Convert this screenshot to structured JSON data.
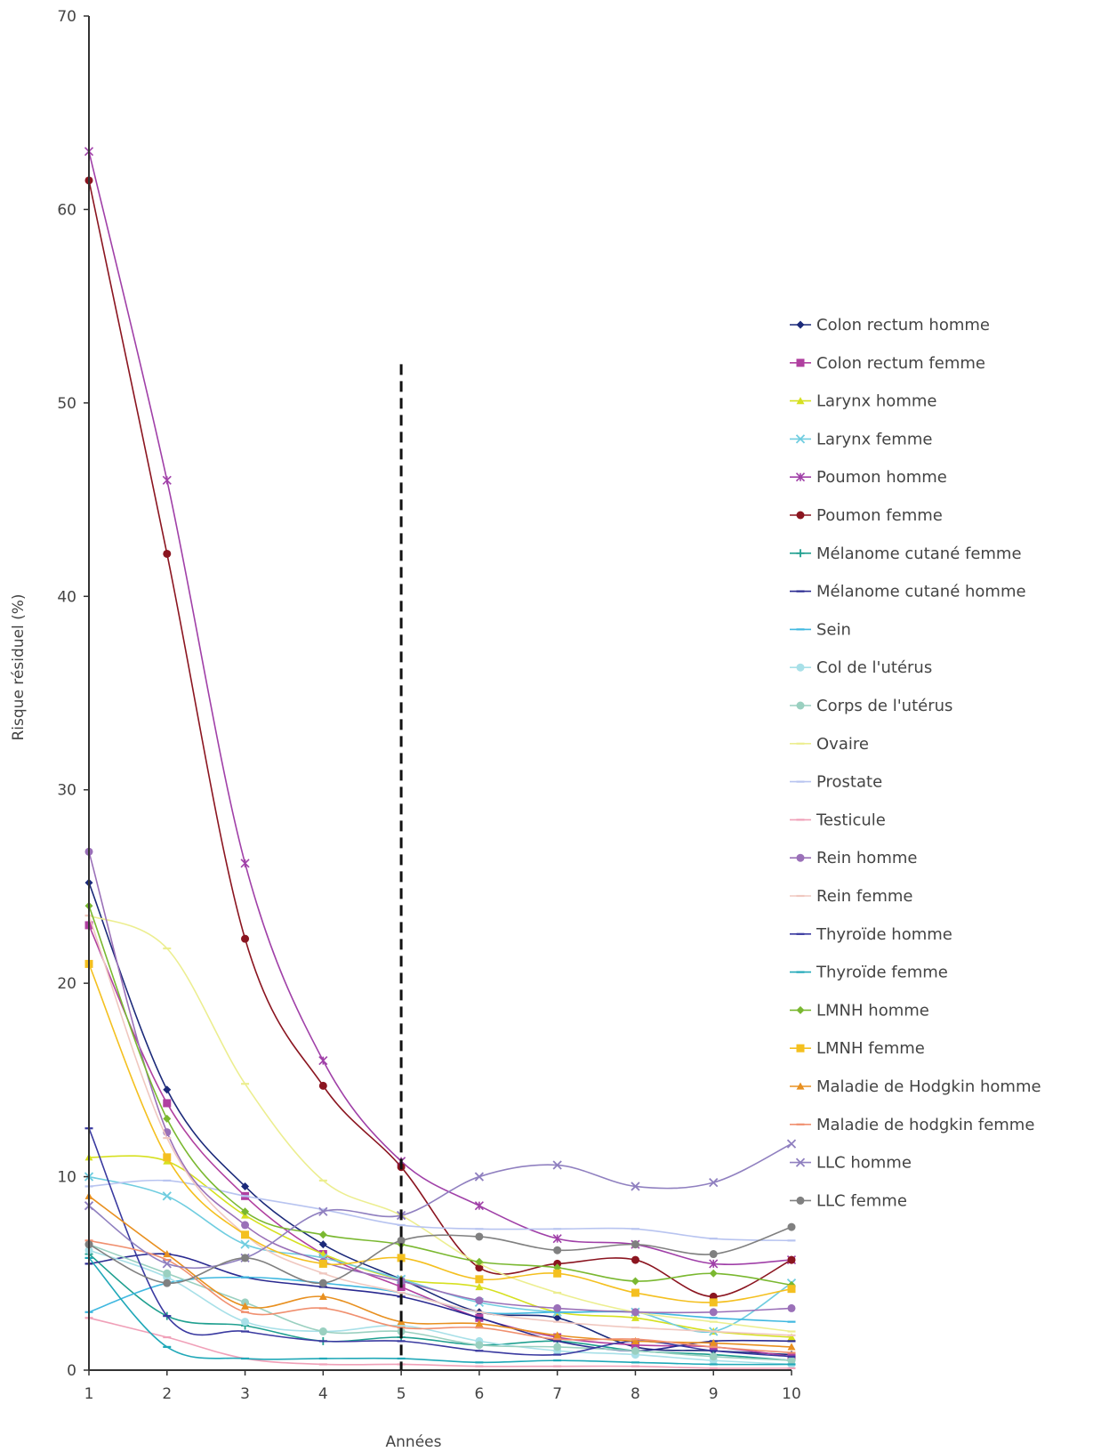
{
  "chart_data": {
    "type": "line",
    "title": "",
    "xlabel": "Années",
    "ylabel": "Risque résiduel (%)",
    "x": [
      1,
      2,
      3,
      4,
      5,
      6,
      7,
      8,
      9,
      10
    ],
    "xlim": [
      1,
      10
    ],
    "ylim": [
      0,
      70
    ],
    "yticks": [
      0,
      10,
      20,
      30,
      40,
      50,
      60,
      70
    ],
    "grid": false,
    "legend_position": "right",
    "annotations": [
      {
        "type": "vertical-dashed-line",
        "x": 5,
        "y_top": 52
      }
    ],
    "series": [
      {
        "name": "Colon rectum homme",
        "color": "#1c2a7a",
        "marker": "diamond",
        "values": [
          25.2,
          14.5,
          9.5,
          6.5,
          4.7,
          3.0,
          2.7,
          1.2,
          1.0,
          0.8
        ]
      },
      {
        "name": "Colon rectum femme",
        "color": "#b040a0",
        "marker": "square",
        "values": [
          23.0,
          13.8,
          9.0,
          6.0,
          4.3,
          2.7,
          1.7,
          1.3,
          1.2,
          0.7
        ]
      },
      {
        "name": "Larynx homme",
        "color": "#d6e020",
        "marker": "triangle",
        "values": [
          11.0,
          10.8,
          8.0,
          6.0,
          4.7,
          4.3,
          3.0,
          2.7,
          2.0,
          1.7
        ]
      },
      {
        "name": "Larynx femme",
        "color": "#70cde0",
        "marker": "x",
        "values": [
          10.0,
          9.0,
          6.5,
          5.8,
          4.7,
          3.5,
          3.0,
          3.0,
          2.0,
          4.5
        ]
      },
      {
        "name": "Poumon homme",
        "color": "#a040a8",
        "marker": "star",
        "values": [
          63.0,
          46.0,
          26.2,
          16.0,
          10.8,
          8.5,
          6.8,
          6.5,
          5.5,
          5.7
        ]
      },
      {
        "name": "Poumon femme",
        "color": "#8b1520",
        "marker": "circle",
        "values": [
          61.5,
          42.2,
          22.3,
          14.7,
          10.5,
          5.3,
          5.5,
          5.7,
          3.8,
          5.7
        ]
      },
      {
        "name": "Mélanome cutané femme",
        "color": "#20a090",
        "marker": "plus",
        "values": [
          6.0,
          2.8,
          2.3,
          1.5,
          1.7,
          1.3,
          1.5,
          1.0,
          0.8,
          0.5
        ]
      },
      {
        "name": "Mélanome cutané homme",
        "color": "#2a2a90",
        "marker": "dash",
        "values": [
          5.5,
          6.0,
          4.8,
          4.3,
          3.8,
          2.7,
          1.5,
          1.0,
          1.5,
          1.5
        ]
      },
      {
        "name": "Sein",
        "color": "#40b8e0",
        "marker": "dash",
        "values": [
          3.0,
          4.5,
          4.8,
          4.5,
          4.0,
          3.0,
          3.0,
          3.0,
          2.7,
          2.5
        ]
      },
      {
        "name": "Col de l'utérus",
        "color": "#a8e0e8",
        "marker": "circle",
        "values": [
          6.2,
          4.8,
          2.5,
          2.0,
          2.3,
          1.5,
          1.0,
          0.8,
          0.5,
          0.3
        ]
      },
      {
        "name": "Corps de l'utérus",
        "color": "#9ad0c0",
        "marker": "circle",
        "values": [
          6.5,
          5.0,
          3.5,
          2.0,
          2.0,
          1.3,
          1.2,
          1.0,
          0.7,
          0.5
        ]
      },
      {
        "name": "Ovaire",
        "color": "#ecee90",
        "marker": "dash",
        "values": [
          23.5,
          21.8,
          14.8,
          9.8,
          8.0,
          5.5,
          4.0,
          3.0,
          2.5,
          2.0
        ]
      },
      {
        "name": "Prostate",
        "color": "#b8c4f0",
        "marker": "dash",
        "values": [
          9.5,
          9.8,
          9.0,
          8.3,
          7.5,
          7.3,
          7.3,
          7.3,
          6.8,
          6.7
        ]
      },
      {
        "name": "Testicule",
        "color": "#f0a0b8",
        "marker": "dash",
        "values": [
          2.7,
          1.7,
          0.6,
          0.3,
          0.3,
          0.2,
          0.2,
          0.2,
          0.1,
          0.1
        ]
      },
      {
        "name": "Rein homme",
        "color": "#9a70b8",
        "marker": "circle",
        "values": [
          26.8,
          12.3,
          7.5,
          5.6,
          4.6,
          3.6,
          3.2,
          3.0,
          3.0,
          3.2
        ]
      },
      {
        "name": "Rein femme",
        "color": "#f0c8c0",
        "marker": "dash",
        "values": [
          23.5,
          12.0,
          7.0,
          5.0,
          4.0,
          3.0,
          2.5,
          2.2,
          2.0,
          1.8
        ]
      },
      {
        "name": "Thyroïde homme",
        "color": "#3a3aa0",
        "marker": "dash",
        "values": [
          12.5,
          2.8,
          2.0,
          1.5,
          1.5,
          1.0,
          0.8,
          1.5,
          1.0,
          0.7
        ]
      },
      {
        "name": "Thyroïde femme",
        "color": "#20a8b8",
        "marker": "dash",
        "values": [
          5.8,
          1.2,
          0.6,
          0.6,
          0.6,
          0.4,
          0.5,
          0.4,
          0.3,
          0.3
        ]
      },
      {
        "name": "LMNH homme",
        "color": "#7ab830",
        "marker": "diamond",
        "values": [
          24.0,
          13.0,
          8.2,
          7.0,
          6.5,
          5.6,
          5.3,
          4.6,
          5.0,
          4.4
        ]
      },
      {
        "name": "LMNH femme",
        "color": "#f4c020",
        "marker": "square",
        "values": [
          21.0,
          11.0,
          7.0,
          5.5,
          5.8,
          4.7,
          5.0,
          4.0,
          3.5,
          4.2
        ]
      },
      {
        "name": "Maladie de Hodgkin homme",
        "color": "#e89020",
        "marker": "triangle",
        "values": [
          9.0,
          6.0,
          3.3,
          3.8,
          2.5,
          2.4,
          1.8,
          1.5,
          1.4,
          1.2
        ]
      },
      {
        "name": "Maladie de hodgkin femme",
        "color": "#f09070",
        "marker": "dash",
        "values": [
          6.7,
          5.7,
          3.0,
          3.2,
          2.2,
          2.2,
          1.6,
          1.6,
          1.2,
          0.9
        ]
      },
      {
        "name": "LLC homme",
        "color": "#9080c0",
        "marker": "x",
        "values": [
          8.5,
          5.5,
          5.8,
          8.2,
          8.0,
          10.0,
          10.6,
          9.5,
          9.7,
          11.7
        ]
      },
      {
        "name": "LLC femme",
        "color": "#808080",
        "marker": "circle",
        "values": [
          6.5,
          4.5,
          5.8,
          4.5,
          6.7,
          6.9,
          6.2,
          6.5,
          6.0,
          7.4
        ]
      }
    ]
  }
}
